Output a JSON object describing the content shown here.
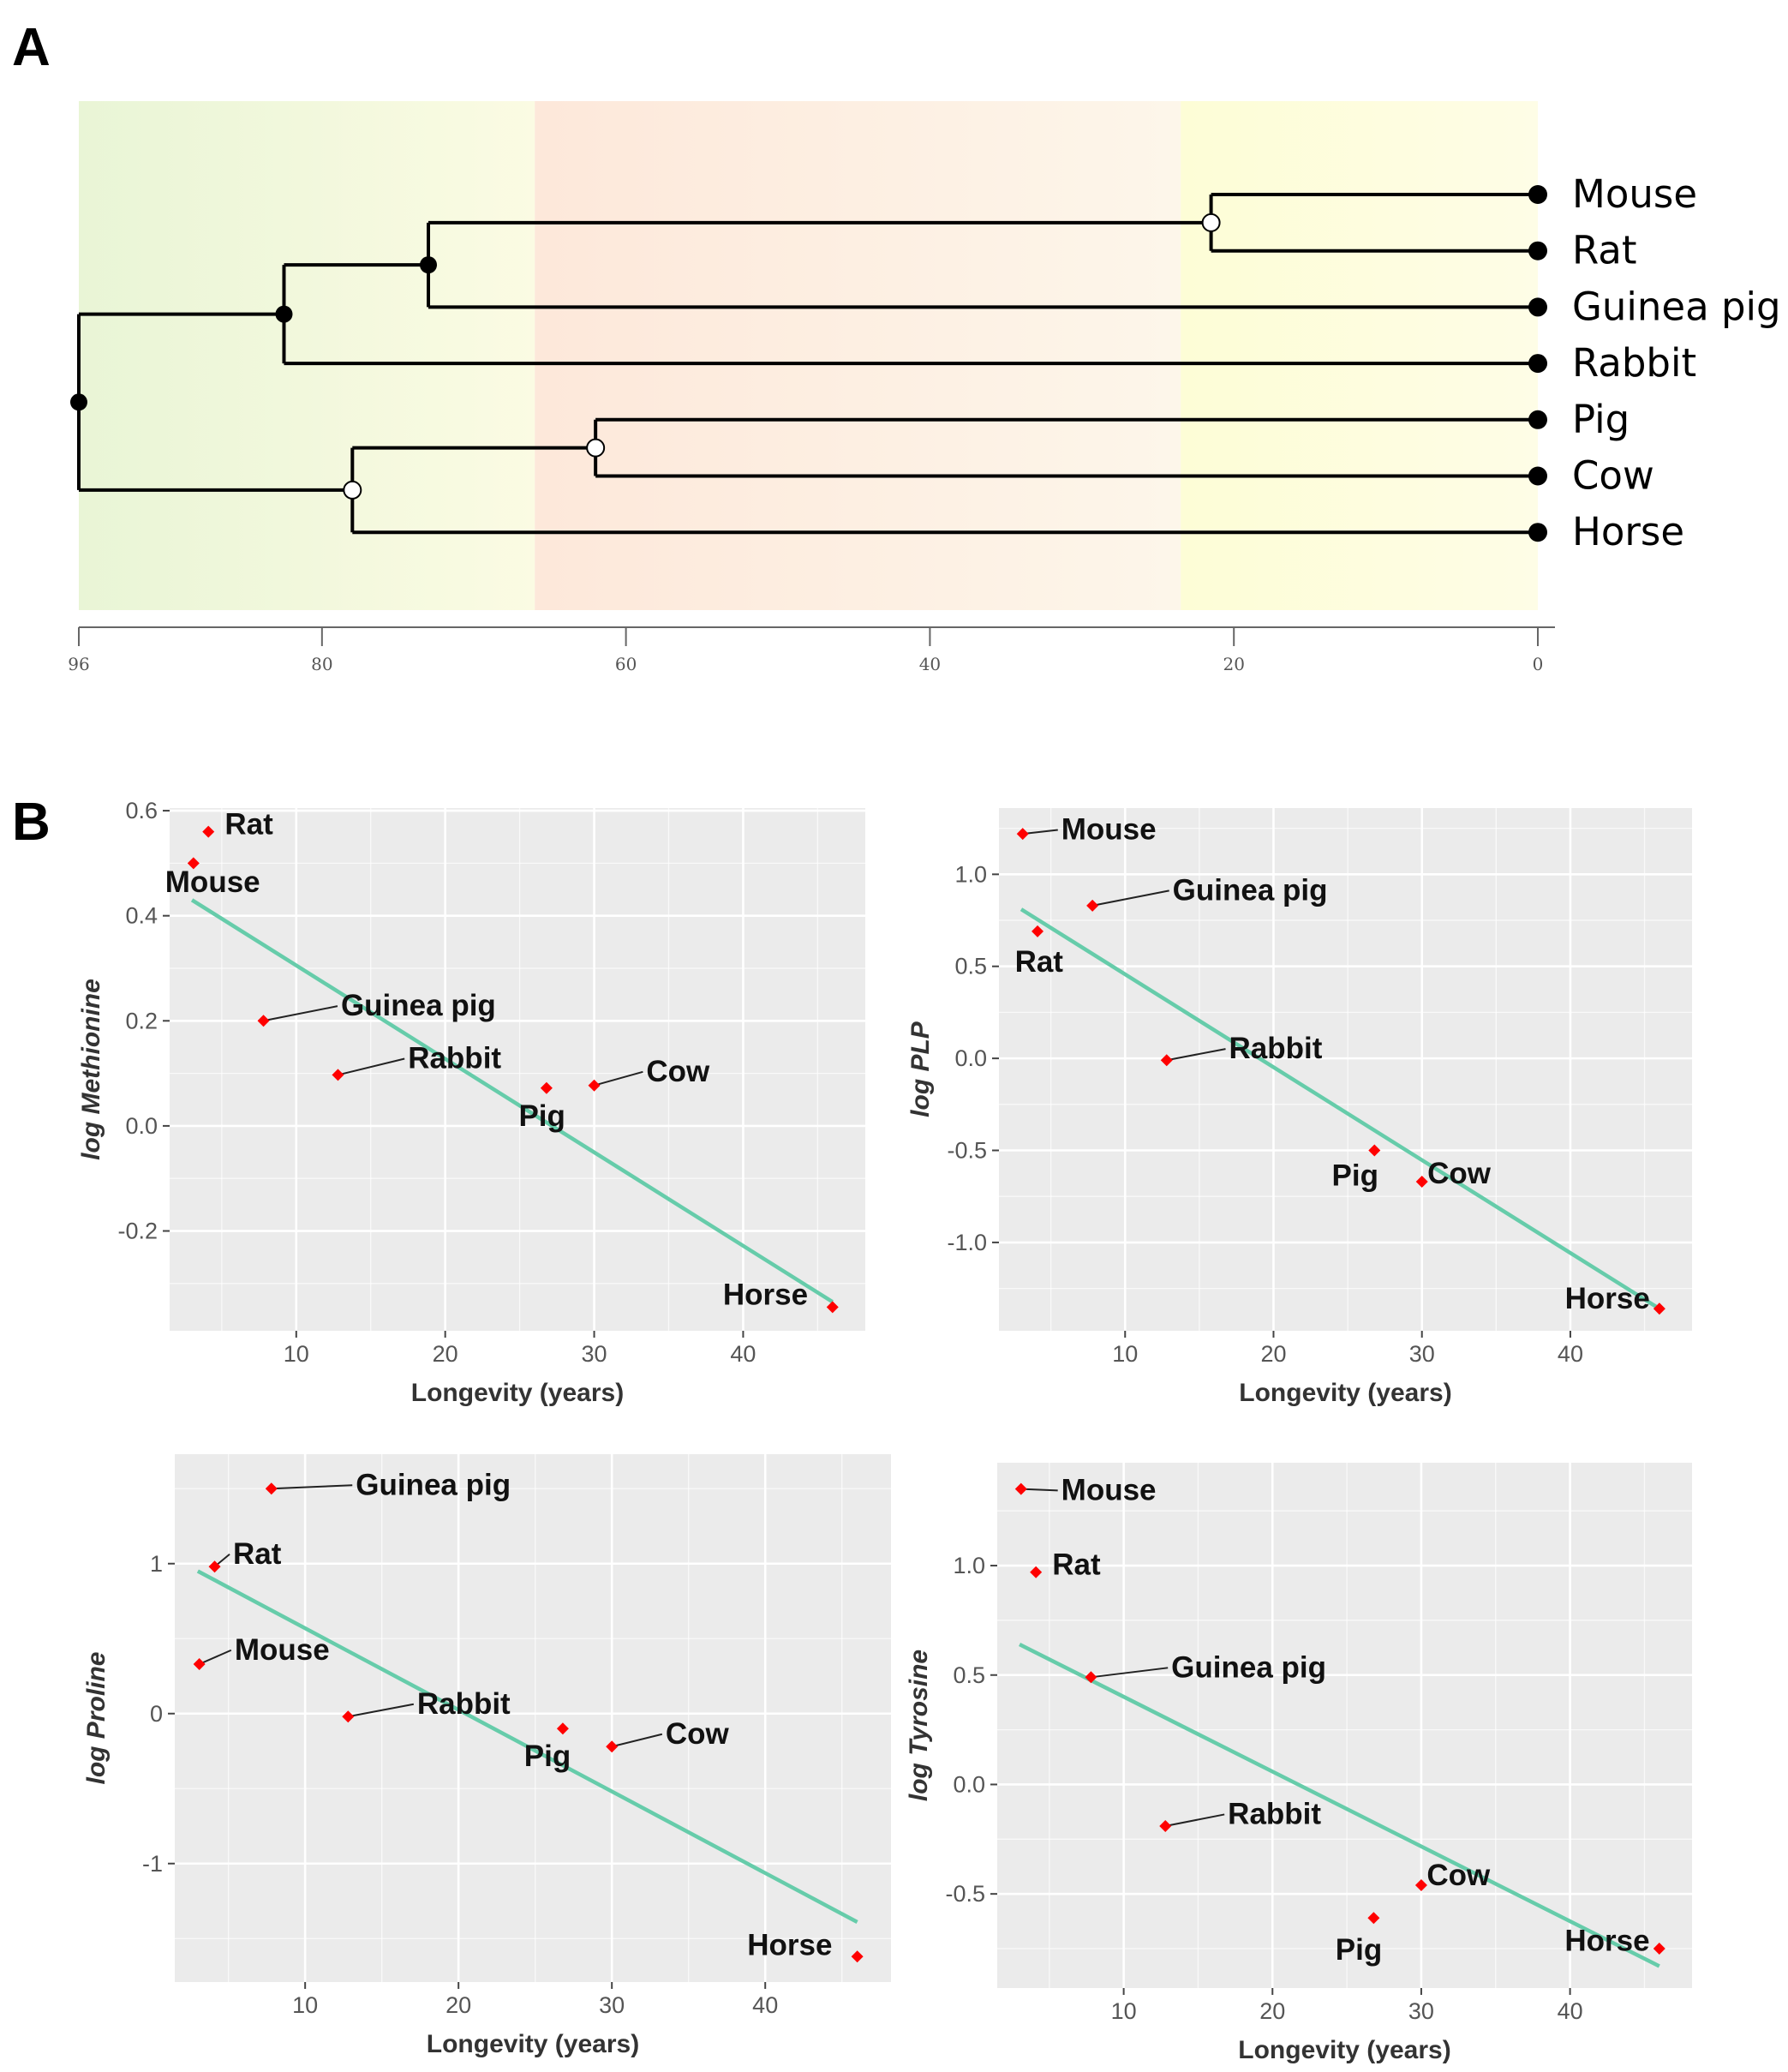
{
  "panels": {
    "a_label": "A",
    "b_label": "B"
  },
  "tree": {
    "taxa": [
      "Mouse",
      "Rat",
      "Guinea pig",
      "Rabbit",
      "Pig",
      "Cow",
      "Horse"
    ],
    "axis_ticks": [
      96,
      80,
      60,
      40,
      20,
      0
    ],
    "xlim": [
      96,
      0
    ],
    "background_bands": [
      {
        "from": 96,
        "to": 66,
        "color_start": "#e9f5d6",
        "color_end": "#fbfbe3"
      },
      {
        "from": 66,
        "to": 23.5,
        "color_start": "#fde8da",
        "color_end": "#fdf6ea"
      },
      {
        "from": 23.5,
        "to": 0,
        "color_start": "#fdfdd6",
        "color_end": "#fefde6"
      }
    ],
    "nodes": [
      {
        "id": "mouse_rat",
        "age": 21.5,
        "children": [
          "Mouse",
          "Rat"
        ],
        "style": "open"
      },
      {
        "id": "rodents",
        "age": 73,
        "children": [
          "mouse_rat",
          "Guinea pig"
        ],
        "style": "filled"
      },
      {
        "id": "glires",
        "age": 82.5,
        "children": [
          "rodents",
          "Rabbit"
        ],
        "style": "filled"
      },
      {
        "id": "pig_cow",
        "age": 62,
        "children": [
          "Pig",
          "Cow"
        ],
        "style": "open"
      },
      {
        "id": "ungulates",
        "age": 78,
        "children": [
          "pig_cow",
          "Horse"
        ],
        "style": "open"
      },
      {
        "id": "root",
        "age": 96,
        "children": [
          "glires",
          "ungulates"
        ],
        "style": "filled"
      }
    ]
  },
  "colors": {
    "point": "#ff0000",
    "fit_line": "#66ccaa",
    "panel_bg": "#ebebeb",
    "grid": "#ffffff"
  },
  "chart_data": [
    {
      "type": "scatter",
      "xlabel": "Longevity (years)",
      "ylabel": "log Methionine",
      "xlim": [
        1.5,
        48.2
      ],
      "ylim": [
        -0.39,
        0.605
      ],
      "xticks": [
        10,
        20,
        30,
        40
      ],
      "yticks": [
        -0.2,
        0.0,
        0.2,
        0.4,
        0.6
      ],
      "ytick_labels": [
        "-0.2",
        "0.0",
        "0.2",
        "0.4",
        "0.6"
      ],
      "fit": {
        "x": [
          3,
          46
        ],
        "y": [
          0.43,
          -0.335
        ]
      },
      "points": [
        {
          "name": "Rat",
          "x": 4.1,
          "y": 0.56,
          "lx": 5.2,
          "ly": 0.555,
          "anchor": "start"
        },
        {
          "name": "Mouse",
          "x": 3.1,
          "y": 0.5,
          "lx": 1.2,
          "ly": 0.445,
          "anchor": "start"
        },
        {
          "name": "Guinea pig",
          "x": 7.8,
          "y": 0.2,
          "lx": 13,
          "ly": 0.21,
          "anchor": "start"
        },
        {
          "name": "Rabbit",
          "x": 12.8,
          "y": 0.097,
          "lx": 17.5,
          "ly": 0.11,
          "anchor": "start"
        },
        {
          "name": "Pig",
          "x": 26.8,
          "y": 0.072,
          "lx": 26.5,
          "ly": 0.0,
          "anchor": "middle"
        },
        {
          "name": "Cow",
          "x": 30,
          "y": 0.077,
          "lx": 33.5,
          "ly": 0.085,
          "anchor": "start"
        },
        {
          "name": "Horse",
          "x": 46,
          "y": -0.345,
          "lx": 41.5,
          "ly": -0.34,
          "anchor": "middle"
        }
      ]
    },
    {
      "type": "scatter",
      "xlabel": "Longevity (years)",
      "ylabel": "log PLP",
      "xlim": [
        1.5,
        48.2
      ],
      "ylim": [
        -1.48,
        1.36
      ],
      "xticks": [
        10,
        20,
        30,
        40
      ],
      "yticks": [
        -1.0,
        -0.5,
        0.0,
        0.5,
        1.0
      ],
      "ytick_labels": [
        "-1.0",
        "-0.5",
        "0.0",
        "0.5",
        "1.0"
      ],
      "fit": {
        "x": [
          3,
          46
        ],
        "y": [
          0.81,
          -1.36
        ]
      },
      "points": [
        {
          "name": "Mouse",
          "x": 3.1,
          "y": 1.22,
          "lx": 5.7,
          "ly": 1.19,
          "anchor": "start"
        },
        {
          "name": "Guinea pig",
          "x": 7.8,
          "y": 0.83,
          "lx": 13.2,
          "ly": 0.86,
          "anchor": "start"
        },
        {
          "name": "Rat",
          "x": 4.1,
          "y": 0.69,
          "lx": 4.2,
          "ly": 0.47,
          "anchor": "middle"
        },
        {
          "name": "Rabbit",
          "x": 12.8,
          "y": -0.01,
          "lx": 17,
          "ly": 0.0,
          "anchor": "start"
        },
        {
          "name": "Pig",
          "x": 26.8,
          "y": -0.5,
          "lx": 25.5,
          "ly": -0.69,
          "anchor": "middle"
        },
        {
          "name": "Cow",
          "x": 30,
          "y": -0.67,
          "lx": 32.5,
          "ly": -0.68,
          "anchor": "middle"
        },
        {
          "name": "Horse",
          "x": 46,
          "y": -1.36,
          "lx": 42.5,
          "ly": -1.36,
          "anchor": "middle"
        }
      ]
    },
    {
      "type": "scatter",
      "xlabel": "Longevity (years)",
      "ylabel": "log Proline",
      "xlim": [
        1.5,
        48.2
      ],
      "ylim": [
        -1.79,
        1.73
      ],
      "xticks": [
        10,
        20,
        30,
        40
      ],
      "yticks": [
        -1,
        0,
        1
      ],
      "ytick_labels": [
        "-1",
        "0",
        "1"
      ],
      "fit": {
        "x": [
          3,
          46
        ],
        "y": [
          0.95,
          -1.39
        ]
      },
      "points": [
        {
          "name": "Guinea pig",
          "x": 7.8,
          "y": 1.5,
          "lx": 13.3,
          "ly": 1.46,
          "anchor": "start"
        },
        {
          "name": "Rat",
          "x": 4.1,
          "y": 0.98,
          "lx": 5.3,
          "ly": 1.0,
          "anchor": "start"
        },
        {
          "name": "Mouse",
          "x": 3.1,
          "y": 0.33,
          "lx": 5.4,
          "ly": 0.36,
          "anchor": "start"
        },
        {
          "name": "Rabbit",
          "x": 12.8,
          "y": -0.02,
          "lx": 17.3,
          "ly": 0.0,
          "anchor": "start"
        },
        {
          "name": "Pig",
          "x": 26.8,
          "y": -0.1,
          "lx": 25.8,
          "ly": -0.35,
          "anchor": "middle"
        },
        {
          "name": "Cow",
          "x": 30,
          "y": -0.22,
          "lx": 33.5,
          "ly": -0.2,
          "anchor": "start"
        },
        {
          "name": "Horse",
          "x": 46,
          "y": -1.62,
          "lx": 41.6,
          "ly": -1.61,
          "anchor": "middle"
        }
      ]
    },
    {
      "type": "scatter",
      "xlabel": "Longevity (years)",
      "ylabel": "log Tyrosine",
      "xlim": [
        1.5,
        48.2
      ],
      "ylim": [
        -0.93,
        1.47
      ],
      "xticks": [
        10,
        20,
        30,
        40
      ],
      "yticks": [
        -0.5,
        0.0,
        0.5,
        1.0
      ],
      "ytick_labels": [
        "-0.5",
        "0.0",
        "0.5",
        "1.0"
      ],
      "fit": {
        "x": [
          3,
          46
        ],
        "y": [
          0.64,
          -0.83
        ]
      },
      "points": [
        {
          "name": "Mouse",
          "x": 3.1,
          "y": 1.35,
          "lx": 5.8,
          "ly": 1.3,
          "anchor": "start"
        },
        {
          "name": "Rat",
          "x": 4.1,
          "y": 0.97,
          "lx": 5.2,
          "ly": 0.96,
          "anchor": "start"
        },
        {
          "name": "Guinea pig",
          "x": 7.8,
          "y": 0.49,
          "lx": 13.2,
          "ly": 0.49,
          "anchor": "start"
        },
        {
          "name": "Rabbit",
          "x": 12.8,
          "y": -0.19,
          "lx": 17,
          "ly": -0.18,
          "anchor": "start"
        },
        {
          "name": "Pig",
          "x": 26.8,
          "y": -0.61,
          "lx": 25.8,
          "ly": -0.8,
          "anchor": "middle"
        },
        {
          "name": "Cow",
          "x": 30,
          "y": -0.46,
          "lx": 32.5,
          "ly": -0.46,
          "anchor": "middle"
        },
        {
          "name": "Horse",
          "x": 46,
          "y": -0.75,
          "lx": 42.5,
          "ly": -0.76,
          "anchor": "middle"
        }
      ]
    }
  ]
}
